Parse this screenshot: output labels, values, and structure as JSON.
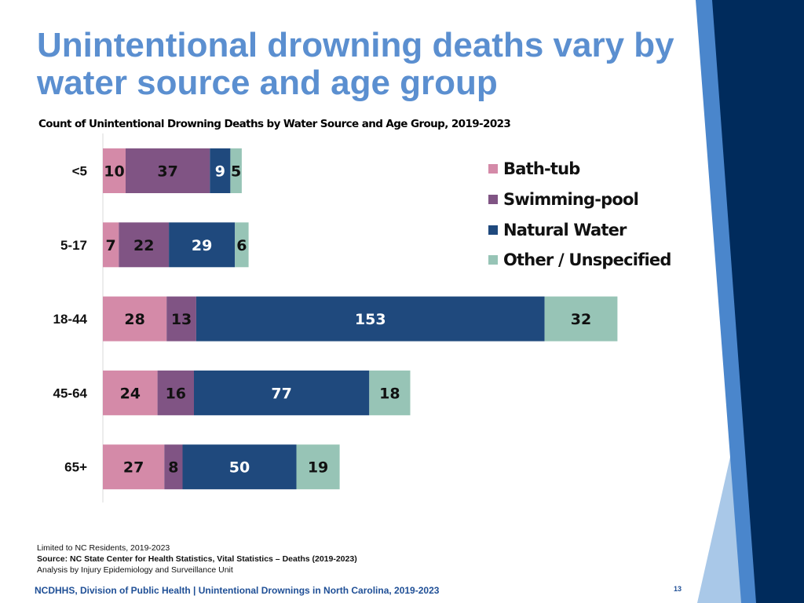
{
  "title": "Unintentional drowning deaths vary by water source and age group",
  "subtitle": "Count of Unintentional Drowning Deaths by Water Source and Age Group, 2019-2023",
  "chart_data": {
    "type": "bar",
    "orientation": "horizontal",
    "stacked": true,
    "categories": [
      "<5",
      "5-17",
      "18-44",
      "45-64",
      "65+"
    ],
    "series": [
      {
        "name": "Bath-tub",
        "color": "#d48aa8",
        "values": [
          10,
          7,
          28,
          24,
          27
        ]
      },
      {
        "name": "Swimming-pool",
        "color": "#805484",
        "values": [
          37,
          22,
          13,
          16,
          8
        ]
      },
      {
        "name": "Natural Water",
        "color": "#1f497d",
        "values": [
          9,
          29,
          153,
          77,
          50
        ]
      },
      {
        "name": "Other / Unspecified",
        "color": "#97c4b6",
        "values": [
          5,
          6,
          32,
          18,
          19
        ]
      }
    ],
    "legend_position": "top-right",
    "grid": false
  },
  "notes": {
    "line1": "Limited to NC Residents, 2019-2023",
    "line2": "Source: NC State Center for Health Statistics, Vital Statistics – Deaths (2019-2023)",
    "line3": "Analysis by Injury Epidemiology and Surveillance Unit"
  },
  "footer": "NCDHHS, Division of Public Health | Unintentional Drownings in North Carolina, 2019-2023",
  "page_number": "13",
  "colors": {
    "title": "#5b8fd0",
    "footer": "#1f4f96",
    "deco_dark": "#002b5c",
    "deco_mid": "#3f7ecb",
    "deco_light": "#9fc0e4"
  }
}
